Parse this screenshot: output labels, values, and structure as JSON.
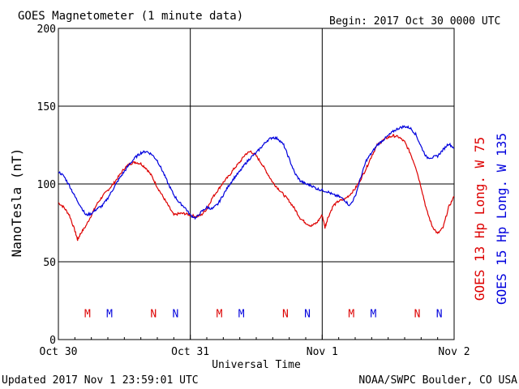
{
  "header": {
    "title": "GOES Magnetometer (1 minute data)",
    "begin": "Begin:  2017 Oct 30 0000 UTC"
  },
  "footer": {
    "updated": "Updated 2017 Nov  1 23:59:01 UTC",
    "credit": "NOAA/SWPC Boulder, CO USA"
  },
  "chart_data": {
    "type": "line",
    "title": "GOES Magnetometer (1 minute data)",
    "xlabel": "Universal Time",
    "ylabel": "NanoTesla (nT)",
    "x_unit": "hours since 2017 Oct 30 0000 UTC",
    "xlim": [
      0,
      72
    ],
    "ylim": [
      0,
      200
    ],
    "x_ticks": [
      {
        "x": 0,
        "label": "Oct 30"
      },
      {
        "x": 24,
        "label": "Oct 31"
      },
      {
        "x": 48,
        "label": "Nov 1"
      },
      {
        "x": 72,
        "label": "Nov 2"
      }
    ],
    "y_ticks": [
      0,
      50,
      100,
      150,
      200
    ],
    "grid": true,
    "legend_position": "right (rotated)",
    "series": [
      {
        "name": "GOES 13 Hp  Long. W 75",
        "color": "#dd0000",
        "x": [
          0,
          1,
          2,
          3,
          3.5,
          4,
          5,
          6,
          7,
          8,
          9,
          10,
          11,
          12,
          13,
          14,
          15,
          16,
          17,
          18,
          19,
          20,
          21,
          22,
          23,
          24,
          25,
          26,
          27,
          28,
          29,
          30,
          31,
          32,
          33,
          34,
          35,
          36,
          37,
          38,
          39,
          40,
          41,
          42,
          43,
          44,
          45,
          46,
          47,
          48,
          48.5,
          49,
          50,
          51,
          52,
          53,
          54,
          55,
          56,
          57,
          58,
          59,
          60,
          61,
          62,
          63,
          64,
          65,
          66,
          67,
          68,
          69,
          70,
          71,
          72
        ],
        "values": [
          88,
          85,
          80,
          70,
          64,
          68,
          73,
          80,
          87,
          92,
          96,
          100,
          105,
          110,
          113,
          114,
          113,
          110,
          105,
          98,
          92,
          86,
          80,
          81,
          81,
          80,
          79,
          80,
          84,
          91,
          96,
          101,
          105,
          110,
          114,
          119,
          121,
          118,
          113,
          107,
          101,
          97,
          93,
          89,
          84,
          78,
          75,
          73,
          75,
          80,
          72,
          78,
          86,
          89,
          90,
          93,
          97,
          103,
          110,
          118,
          125,
          128,
          130,
          131,
          130,
          127,
          120,
          111,
          98,
          83,
          73,
          68,
          72,
          85,
          92
        ],
        "x_override_note": "values aligned to x"
      },
      {
        "name": "GOES 15 Hp  Long. W 135",
        "color": "#0000dd",
        "x": [
          0,
          1,
          2,
          3,
          4,
          5,
          6,
          7,
          8,
          9,
          10,
          11,
          12,
          13,
          14,
          15,
          16,
          17,
          18,
          19,
          20,
          21,
          22,
          23,
          24,
          25,
          26,
          27,
          28,
          29,
          30,
          31,
          32,
          33,
          34,
          35,
          36,
          37,
          38,
          39,
          40,
          41,
          42,
          43,
          44,
          45,
          46,
          47,
          48,
          49,
          50,
          51,
          52,
          53,
          54,
          55,
          56,
          57,
          58,
          59,
          60,
          61,
          62,
          63,
          64,
          65,
          66,
          67,
          68,
          69,
          70,
          71,
          72
        ],
        "values": [
          108,
          105,
          99,
          92,
          86,
          80,
          81,
          84,
          86,
          91,
          97,
          103,
          108,
          113,
          117,
          120,
          121,
          119,
          115,
          108,
          100,
          93,
          88,
          85,
          80,
          78,
          82,
          85,
          84,
          87,
          93,
          99,
          104,
          108,
          113,
          117,
          120,
          124,
          128,
          130,
          129,
          125,
          116,
          107,
          102,
          100,
          99,
          97,
          96,
          95,
          93,
          92,
          90,
          86,
          92,
          104,
          115,
          120,
          125,
          128,
          131,
          134,
          136,
          137,
          136,
          132,
          124,
          117,
          117,
          118,
          122,
          126,
          123
        ]
      }
    ],
    "annotations": {
      "marker_labels_y": 17,
      "markers": [
        {
          "x": 5.3,
          "label": "M",
          "series": 0
        },
        {
          "x": 9.3,
          "label": "M",
          "series": 1
        },
        {
          "x": 17.3,
          "label": "N",
          "series": 0
        },
        {
          "x": 21.3,
          "label": "N",
          "series": 1
        },
        {
          "x": 29.3,
          "label": "M",
          "series": 0
        },
        {
          "x": 33.3,
          "label": "M",
          "series": 1
        },
        {
          "x": 41.3,
          "label": "N",
          "series": 0
        },
        {
          "x": 45.3,
          "label": "N",
          "series": 1
        },
        {
          "x": 53.3,
          "label": "M",
          "series": 0
        },
        {
          "x": 57.3,
          "label": "M",
          "series": 1
        },
        {
          "x": 65.3,
          "label": "N",
          "series": 0
        },
        {
          "x": 69.3,
          "label": "N",
          "series": 1
        }
      ]
    }
  }
}
